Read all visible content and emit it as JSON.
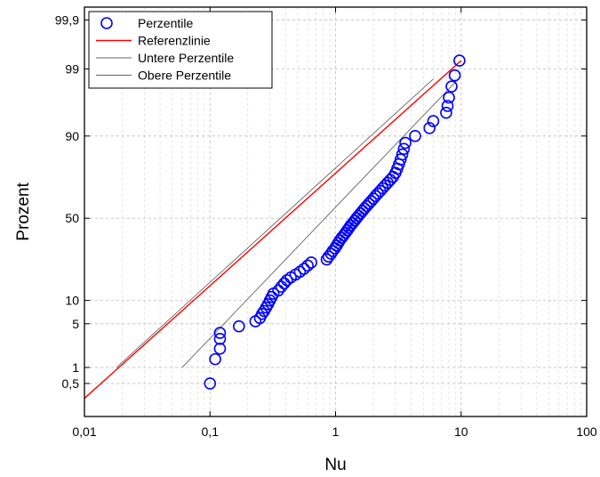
{
  "chart_data": {
    "type": "scatter",
    "title": "",
    "xlabel": "Nu",
    "ylabel": "Prozent",
    "x_scale": "log",
    "y_scale": "normal-probability",
    "xlim": [
      0.01,
      100
    ],
    "ylim_percent": [
      0.1,
      99.95
    ],
    "grid": true,
    "legend_position": "top-left",
    "x_ticks": [
      {
        "value": 0.01,
        "label": "0,01"
      },
      {
        "value": 0.1,
        "label": "0,1"
      },
      {
        "value": 1,
        "label": "1"
      },
      {
        "value": 10,
        "label": "10"
      },
      {
        "value": 100,
        "label": "100"
      }
    ],
    "y_ticks": [
      {
        "value": 0.5,
        "label": "0,5"
      },
      {
        "value": 1,
        "label": "1"
      },
      {
        "value": 5,
        "label": "5"
      },
      {
        "value": 10,
        "label": "10"
      },
      {
        "value": 50,
        "label": "50"
      },
      {
        "value": 90,
        "label": "90"
      },
      {
        "value": 99,
        "label": "99"
      },
      {
        "value": 99.9,
        "label": "99,9"
      }
    ],
    "series": [
      {
        "name": "Perzentile",
        "kind": "points",
        "color": "#0000ff",
        "points": [
          [
            0.1,
            0.5
          ],
          [
            0.11,
            1.4
          ],
          [
            0.12,
            2.1
          ],
          [
            0.12,
            3.0
          ],
          [
            0.12,
            3.7
          ],
          [
            0.17,
            4.6
          ],
          [
            0.23,
            5.4
          ],
          [
            0.25,
            6.0
          ],
          [
            0.26,
            6.8
          ],
          [
            0.27,
            7.4
          ],
          [
            0.28,
            8.2
          ],
          [
            0.29,
            9.0
          ],
          [
            0.3,
            10.0
          ],
          [
            0.31,
            11.0
          ],
          [
            0.32,
            12.0
          ],
          [
            0.35,
            13.0
          ],
          [
            0.37,
            14.3
          ],
          [
            0.39,
            15.5
          ],
          [
            0.41,
            16.7
          ],
          [
            0.44,
            17.8
          ],
          [
            0.48,
            19.0
          ],
          [
            0.52,
            20.2
          ],
          [
            0.56,
            21.5
          ],
          [
            0.6,
            23.0
          ],
          [
            0.64,
            24.5
          ],
          [
            0.85,
            26.0
          ],
          [
            0.88,
            27.5
          ],
          [
            0.92,
            29.0
          ],
          [
            0.95,
            30.5
          ],
          [
            0.99,
            32.0
          ],
          [
            1.02,
            33.5
          ],
          [
            1.05,
            35.0
          ],
          [
            1.08,
            36.5
          ],
          [
            1.12,
            38.0
          ],
          [
            1.16,
            39.5
          ],
          [
            1.2,
            41.0
          ],
          [
            1.24,
            42.5
          ],
          [
            1.28,
            44.0
          ],
          [
            1.32,
            45.5
          ],
          [
            1.37,
            47.0
          ],
          [
            1.42,
            48.5
          ],
          [
            1.47,
            50.0
          ],
          [
            1.52,
            51.5
          ],
          [
            1.58,
            53.0
          ],
          [
            1.64,
            54.5
          ],
          [
            1.7,
            56.0
          ],
          [
            1.77,
            57.5
          ],
          [
            1.84,
            59.0
          ],
          [
            1.92,
            60.5
          ],
          [
            2.0,
            62.0
          ],
          [
            2.08,
            63.5
          ],
          [
            2.17,
            65.0
          ],
          [
            2.27,
            66.5
          ],
          [
            2.37,
            68.0
          ],
          [
            2.48,
            69.5
          ],
          [
            2.6,
            71.0
          ],
          [
            2.73,
            72.5
          ],
          [
            2.87,
            74.0
          ],
          [
            3.0,
            76.0
          ],
          [
            3.1,
            78.0
          ],
          [
            3.2,
            80.0
          ],
          [
            3.3,
            82.0
          ],
          [
            3.4,
            84.0
          ],
          [
            3.5,
            86.0
          ],
          [
            3.6,
            88.0
          ],
          [
            4.3,
            90.0
          ],
          [
            5.6,
            92.0
          ],
          [
            6.0,
            93.5
          ],
          [
            7.6,
            95.0
          ],
          [
            7.8,
            96.0
          ],
          [
            8.0,
            97.0
          ],
          [
            8.4,
            98.0
          ],
          [
            8.9,
            98.7
          ],
          [
            9.7,
            99.3
          ]
        ]
      },
      {
        "name": "Referenzlinie",
        "kind": "line",
        "color": "#ff0000",
        "points": [
          [
            0.01,
            0.25
          ],
          [
            10,
            99.3
          ]
        ]
      },
      {
        "name": "Untere Perzentile",
        "kind": "line",
        "color": "#666666",
        "points": [
          [
            0.018,
            1.0
          ],
          [
            6.0,
            98.5
          ]
        ]
      },
      {
        "name": "Obere Perzentile",
        "kind": "line",
        "color": "#666666",
        "points": [
          [
            0.06,
            1.0
          ],
          [
            9.5,
            98.5
          ]
        ]
      }
    ]
  }
}
